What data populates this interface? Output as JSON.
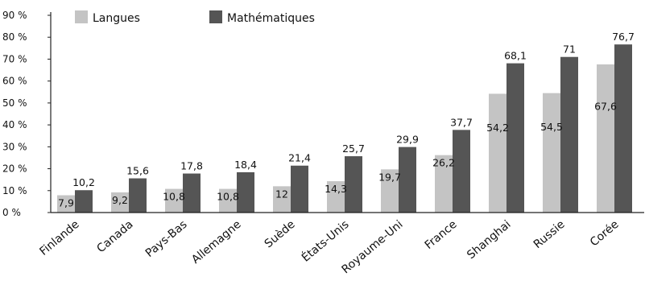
{
  "chart_data": {
    "type": "bar",
    "categories": [
      "Finlande",
      "Canada",
      "Pays-Bas",
      "Allemagne",
      "Suède",
      "États-Unis",
      "Royaume-Uni",
      "France",
      "Shanghai",
      "Russie",
      "Corée"
    ],
    "series": [
      {
        "name": "Langues",
        "color": "#c4c4c4",
        "values": [
          7.9,
          9.2,
          10.8,
          10.8,
          12,
          14.3,
          19.7,
          26.2,
          54.2,
          54.5,
          67.6
        ],
        "labels": [
          "7,9",
          "9,2",
          "10,8",
          "10,8",
          "12",
          "14,3",
          "19,7",
          "26,2",
          "54,2",
          "54,5",
          "67,6"
        ]
      },
      {
        "name": "Mathématiques",
        "color": "#555555",
        "values": [
          10.2,
          15.6,
          17.8,
          18.4,
          21.4,
          25.7,
          29.9,
          37.7,
          68.1,
          71,
          76.7
        ],
        "labels": [
          "10,2",
          "15,6",
          "17,8",
          "18,4",
          "21,4",
          "25,7",
          "29,9",
          "37,7",
          "68,1",
          "71",
          "76,7"
        ]
      }
    ],
    "ylim": [
      0,
      90
    ],
    "yticks": [
      0,
      10,
      20,
      30,
      40,
      50,
      60,
      70,
      80,
      90
    ],
    "ytick_labels": [
      "0 %",
      "10 %",
      "20 %",
      "30 %",
      "40 %",
      "50 %",
      "60 %",
      "70 %",
      "80 %",
      "90 %"
    ],
    "legend": {
      "placement": "top-left",
      "items": [
        "Langues",
        "Mathématiques"
      ]
    },
    "grid": false
  }
}
